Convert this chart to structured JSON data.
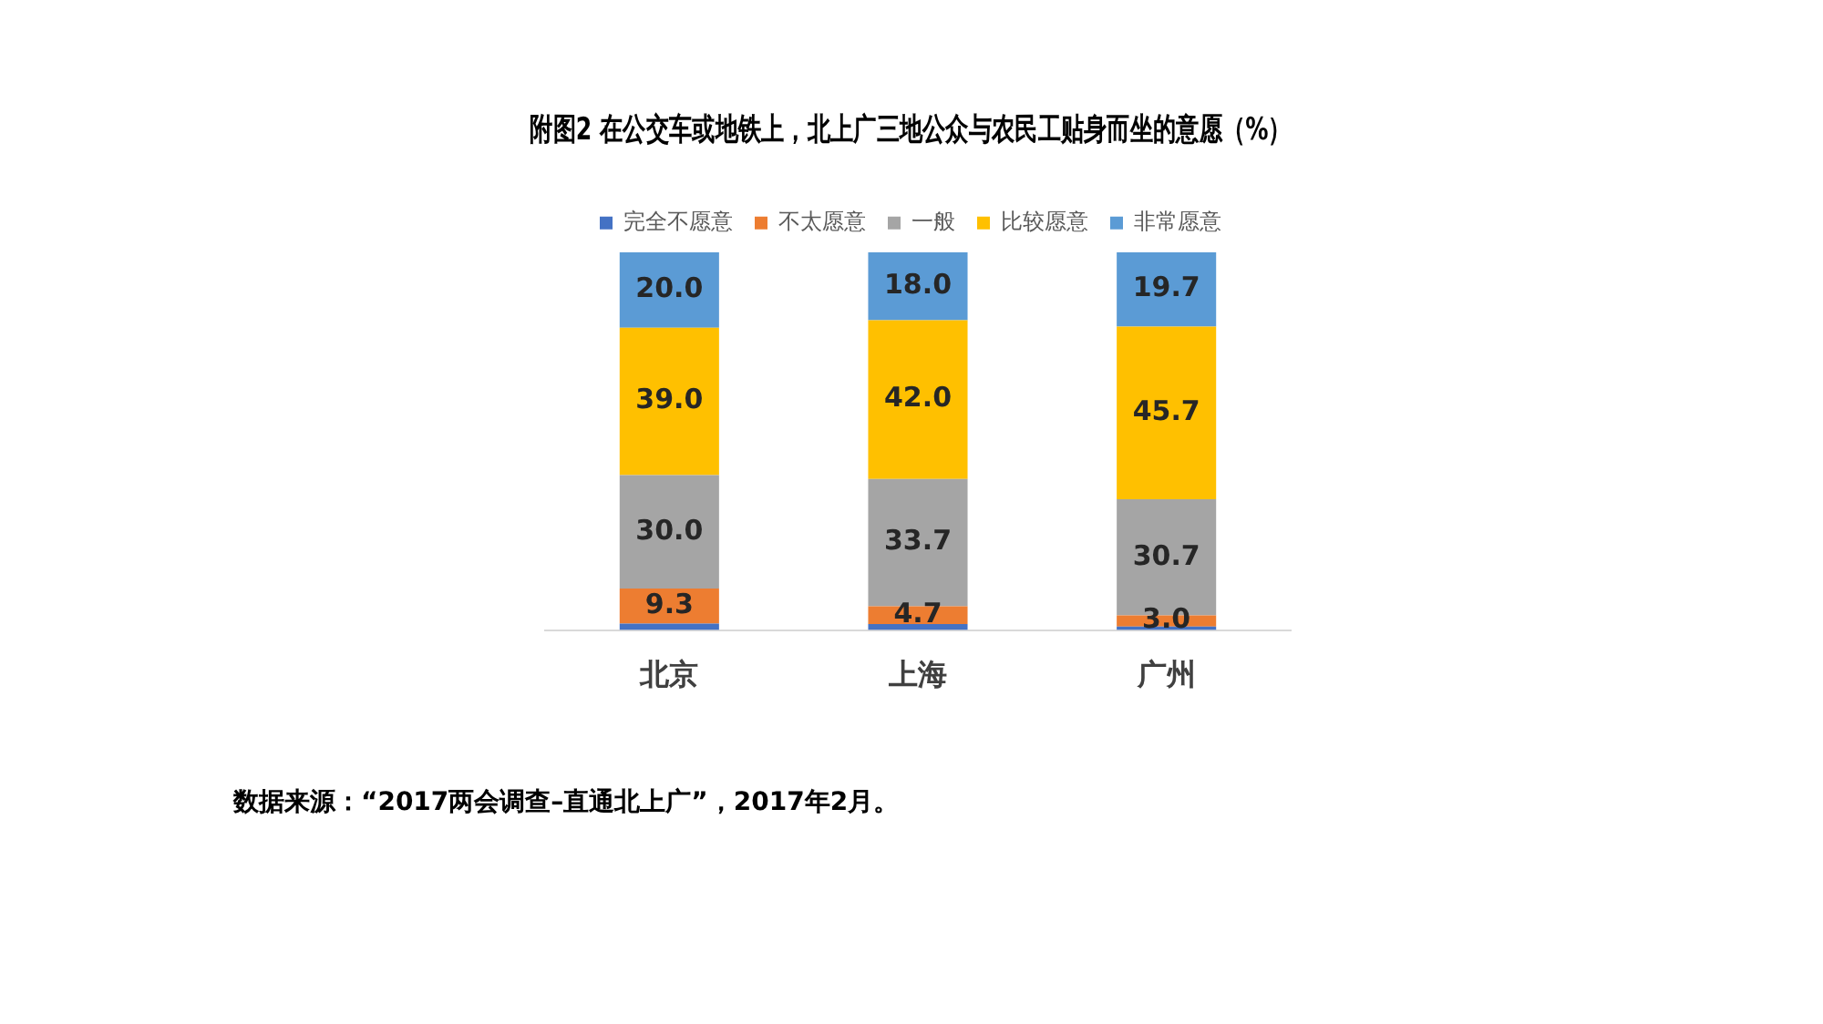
{
  "chart_data": {
    "type": "bar",
    "stacked": true,
    "title": "附图2 在公交车或地铁上，北上广三地公众与农民工贴身而坐的意愿（%）",
    "categories": [
      "北京",
      "上海",
      "广州"
    ],
    "ylim": [
      0,
      100
    ],
    "tick_labels": "x",
    "grid": false,
    "legend": "top",
    "series": [
      {
        "name": "完全不愿意",
        "color": "#4472c4",
        "values": [
          1.7,
          1.6,
          0.9
        ],
        "value_labels": [
          null,
          null,
          null
        ]
      },
      {
        "name": "不太愿意",
        "color": "#ed7d31",
        "values": [
          9.3,
          4.7,
          3.0
        ],
        "value_labels": [
          "9.3",
          "4.7",
          "3.0"
        ]
      },
      {
        "name": "一般",
        "color": "#a5a5a5",
        "values": [
          30.0,
          33.7,
          30.7
        ],
        "value_labels": [
          "30.0",
          "33.7",
          "30.7"
        ]
      },
      {
        "name": "比较愿意",
        "color": "#ffc000",
        "values": [
          39.0,
          42.0,
          45.7
        ],
        "value_labels": [
          "39.0",
          "42.0",
          "45.7"
        ]
      },
      {
        "name": "非常愿意",
        "color": "#5b9bd5",
        "values": [
          20.0,
          18.0,
          19.7
        ],
        "value_labels": [
          "20.0",
          "18.0",
          "19.7"
        ]
      }
    ],
    "annotations": [
      "数据来源：“2017两会调查–直通北上广”，2017年2月。"
    ]
  }
}
